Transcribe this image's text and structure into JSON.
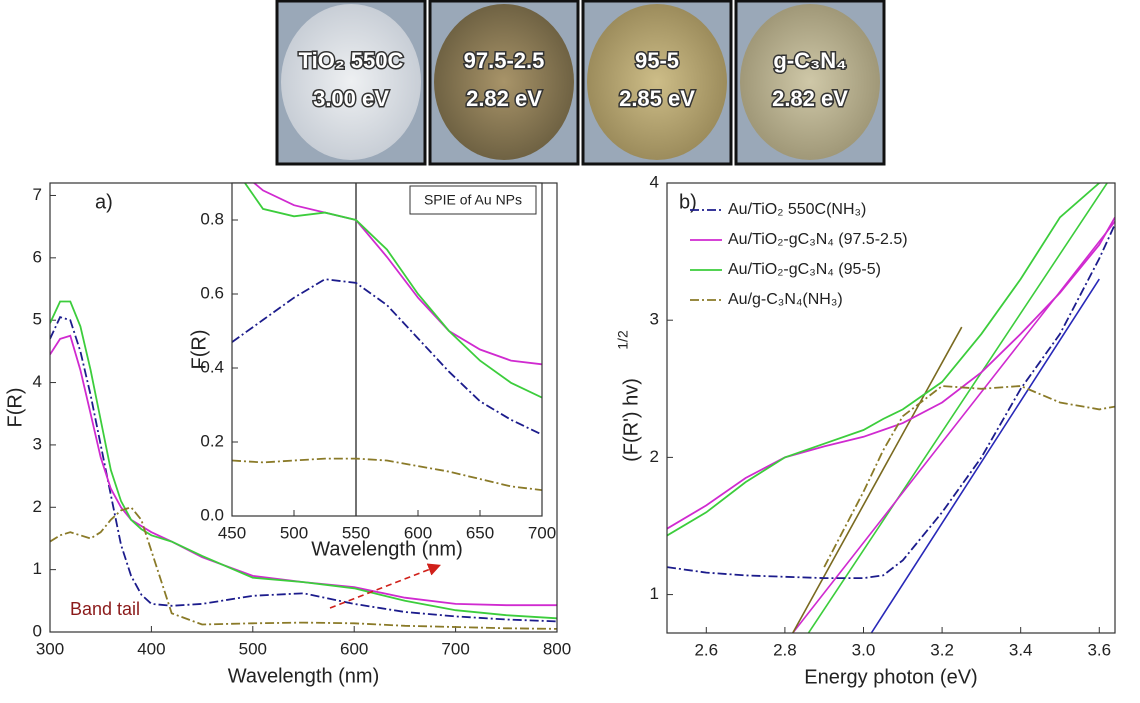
{
  "photos": [
    {
      "label": "TiO₂ 550C",
      "energy": "3.00 eV"
    },
    {
      "label": "97.5-2.5",
      "energy": "2.82 eV"
    },
    {
      "label": "95-5",
      "energy": "2.85 eV"
    },
    {
      "label": "g-C₃N₄",
      "energy": "2.82 eV"
    }
  ],
  "chart_data": [
    {
      "type": "line",
      "panel_label": "a)",
      "x_label": "Wavelength (nm)",
      "y_label": "F(R)",
      "annotation": "Band tail",
      "xlim": [
        300,
        800
      ],
      "ylim": [
        0,
        7.2
      ],
      "xticks": [
        300,
        400,
        500,
        600,
        700,
        800
      ],
      "yticks": [
        0,
        1,
        2,
        3,
        4,
        5,
        6,
        7
      ],
      "x": [
        300,
        310,
        320,
        330,
        340,
        350,
        360,
        370,
        380,
        390,
        400,
        420,
        450,
        500,
        550,
        600,
        650,
        700,
        750,
        800
      ],
      "series": [
        {
          "color": "#1c1c8c",
          "dash": "dashdot",
          "values": [
            4.7,
            5.05,
            5.0,
            4.5,
            3.8,
            3.0,
            2.2,
            1.4,
            0.9,
            0.6,
            0.45,
            0.42,
            0.45,
            0.58,
            0.62,
            0.45,
            0.32,
            0.25,
            0.2,
            0.17
          ]
        },
        {
          "color": "#d02ad0",
          "dash": "solid",
          "values": [
            4.45,
            4.7,
            4.75,
            4.2,
            3.5,
            2.8,
            2.3,
            2.0,
            1.8,
            1.7,
            1.6,
            1.45,
            1.2,
            0.9,
            0.8,
            0.72,
            0.55,
            0.45,
            0.43,
            0.43
          ]
        },
        {
          "color": "#3ccd3c",
          "dash": "solid",
          "values": [
            4.95,
            5.3,
            5.3,
            4.9,
            4.2,
            3.4,
            2.6,
            2.1,
            1.8,
            1.65,
            1.55,
            1.45,
            1.22,
            0.87,
            0.8,
            0.7,
            0.5,
            0.35,
            0.27,
            0.22
          ]
        },
        {
          "color": "#8a7a28",
          "dash": "dashdot",
          "values": [
            1.45,
            1.55,
            1.6,
            1.55,
            1.5,
            1.6,
            1.8,
            1.95,
            2.0,
            1.8,
            1.3,
            0.3,
            0.12,
            0.14,
            0.15,
            0.14,
            0.1,
            0.08,
            0.06,
            0.05
          ]
        }
      ]
    },
    {
      "type": "line",
      "title": "SPIE of Au NPs",
      "x_label": "Wavelength (nm)",
      "y_label": "F(R)",
      "reference_x": 550,
      "xlim": [
        450,
        700
      ],
      "ylim": [
        0,
        0.9
      ],
      "xticks": [
        450,
        500,
        550,
        600,
        650,
        700
      ],
      "yticks": [
        {
          "value": 0,
          "label": "0.0"
        },
        0.2,
        0.4,
        0.6,
        0.8
      ],
      "x": [
        450,
        475,
        500,
        525,
        550,
        575,
        600,
        625,
        650,
        675,
        700
      ],
      "series": [
        {
          "color": "#1c1c8c",
          "dash": "dashdot",
          "values": [
            0.47,
            0.53,
            0.59,
            0.64,
            0.63,
            0.57,
            0.48,
            0.39,
            0.31,
            0.26,
            0.22
          ]
        },
        {
          "color": "#d02ad0",
          "dash": "solid",
          "values": [
            0.95,
            0.88,
            0.84,
            0.82,
            0.8,
            0.7,
            0.59,
            0.5,
            0.45,
            0.42,
            0.41
          ]
        },
        {
          "color": "#3ccd3c",
          "dash": "solid",
          "values": [
            0.95,
            0.83,
            0.81,
            0.82,
            0.8,
            0.72,
            0.6,
            0.5,
            0.42,
            0.36,
            0.32
          ]
        },
        {
          "color": "#8a7a28",
          "dash": "dashdot",
          "values": [
            0.15,
            0.145,
            0.15,
            0.155,
            0.155,
            0.15,
            0.135,
            0.12,
            0.1,
            0.08,
            0.07
          ]
        }
      ]
    },
    {
      "type": "line",
      "panel_label": "b)",
      "x_label": "Energy photon (eV)",
      "y_label": "(F(R') hv)",
      "y_label_exponent": "1/2",
      "xlim": [
        2.5,
        3.64
      ],
      "ylim": [
        0.72,
        4.0
      ],
      "xticks": [
        2.6,
        2.8,
        {
          "value": 3,
          "label": "3.0"
        },
        3.2,
        3.4,
        3.6
      ],
      "yticks": [
        1,
        2,
        3,
        4
      ],
      "x": [
        2.5,
        2.6,
        2.7,
        2.8,
        2.9,
        3.0,
        3.05,
        3.1,
        3.2,
        3.3,
        3.4,
        3.5,
        3.6,
        3.64
      ],
      "series": [
        {
          "name": "Au/TiO₂ 550C(NH₃)",
          "color": "#1c1c8c",
          "dash": "dashdot",
          "values": [
            1.2,
            1.16,
            1.14,
            1.13,
            1.12,
            1.12,
            1.14,
            1.25,
            1.6,
            2.0,
            2.5,
            2.9,
            3.45,
            3.7
          ]
        },
        {
          "name": "Au/TiO₂-gC₃N₄ (97.5-2.5)",
          "color": "#d02ad0",
          "dash": "solid",
          "values": [
            1.48,
            1.65,
            1.85,
            2.0,
            2.08,
            2.15,
            2.2,
            2.25,
            2.4,
            2.62,
            2.9,
            3.2,
            3.55,
            3.75
          ]
        },
        {
          "name": "Au/TiO₂-gC₃N₄ (95-5)",
          "color": "#3ccd3c",
          "dash": "solid",
          "values": [
            1.43,
            1.6,
            1.82,
            2.0,
            2.1,
            2.2,
            2.28,
            2.35,
            2.55,
            2.9,
            3.3,
            3.75,
            4.0,
            4.05
          ]
        },
        {
          "name": "Au/g-C₃N₄(NH₃)",
          "color": "#8a7a28",
          "dash": "dashdot",
          "values": [
            null,
            null,
            null,
            null,
            1.2,
            1.75,
            2.05,
            2.3,
            2.52,
            2.5,
            2.52,
            2.4,
            2.35,
            2.37
          ]
        }
      ],
      "fit_lines": [
        {
          "color": "#2828b8",
          "x": [
            3.02,
            3.6
          ],
          "values": [
            0.72,
            3.3
          ]
        },
        {
          "color": "#3ccd3c",
          "x": [
            2.86,
            3.62
          ],
          "values": [
            0.72,
            4.0
          ]
        },
        {
          "color": "#d02ad0",
          "x": [
            2.82,
            3.64
          ],
          "values": [
            0.72,
            3.72
          ]
        },
        {
          "color": "#7a6a20",
          "x": [
            2.82,
            3.25
          ],
          "values": [
            0.72,
            2.95
          ]
        }
      ]
    }
  ]
}
